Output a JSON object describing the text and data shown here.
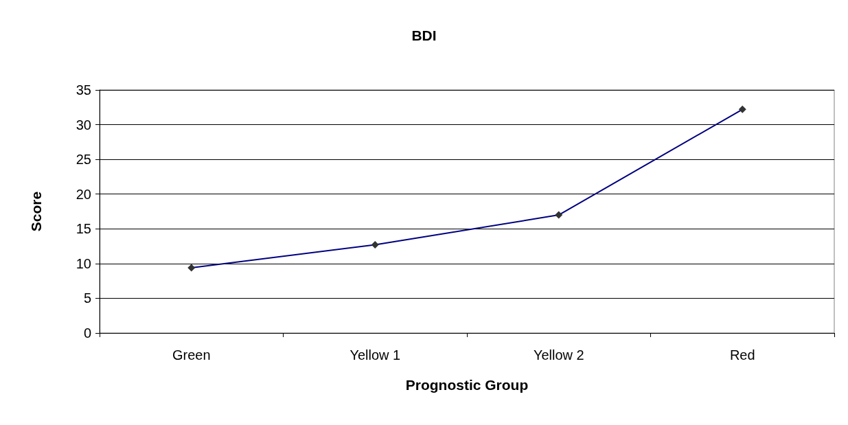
{
  "chart_data": {
    "type": "line",
    "title": "BDI",
    "xlabel": "Prognostic Group",
    "ylabel": "Score",
    "categories": [
      "Green",
      "Yellow 1",
      "Yellow 2",
      "Red"
    ],
    "series": [
      {
        "color": "#000080",
        "values": [
          9.4,
          12.7,
          17,
          32.2
        ]
      }
    ],
    "ylim": [
      0,
      35
    ],
    "yticks": [
      0,
      5,
      10,
      15,
      20,
      25,
      30,
      35
    ],
    "grid": "y",
    "marker": "diamond",
    "line_style": "solid"
  }
}
